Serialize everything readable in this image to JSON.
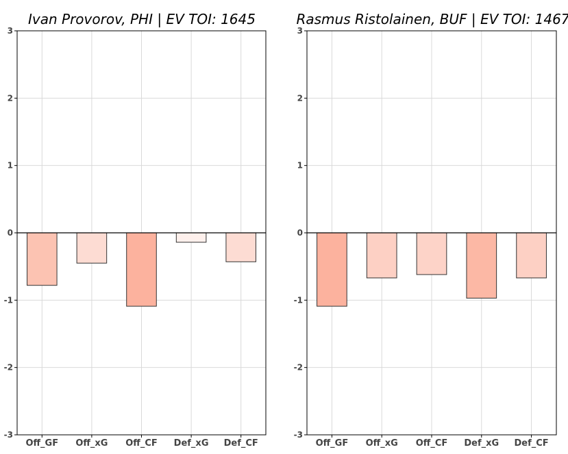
{
  "chart_data": [
    {
      "type": "bar",
      "title": "Ivan Provorov, PHI  |  EV TOI: 1645",
      "categories": [
        "Off_GF",
        "Off_xG",
        "Off_CF",
        "Def_xG",
        "Def_CF"
      ],
      "values": [
        -0.78,
        -0.45,
        -1.09,
        -0.14,
        -0.43
      ],
      "colors": [
        "#fcc3b2",
        "#fddcd3",
        "#fcb29e",
        "#fef0ec",
        "#fddcd3"
      ],
      "ylim": [
        -3,
        3
      ],
      "yticks": [
        -3,
        -2,
        -1,
        0,
        1,
        2,
        3
      ],
      "grid": true,
      "xlabel": "",
      "ylabel": ""
    },
    {
      "type": "bar",
      "title": "Rasmus Ristolainen, BUF  |  EV TOI: 1467",
      "categories": [
        "Off_GF",
        "Off_xG",
        "Off_CF",
        "Def_xG",
        "Def_CF"
      ],
      "values": [
        -1.09,
        -0.67,
        -0.62,
        -0.97,
        -0.67
      ],
      "colors": [
        "#fcb29e",
        "#fdd0c4",
        "#fdd3c8",
        "#fcb8a5",
        "#fdd0c4"
      ],
      "ylim": [
        -3,
        3
      ],
      "yticks": [
        -3,
        -2,
        -1,
        0,
        1,
        2,
        3
      ],
      "grid": true,
      "xlabel": "",
      "ylabel": ""
    }
  ]
}
